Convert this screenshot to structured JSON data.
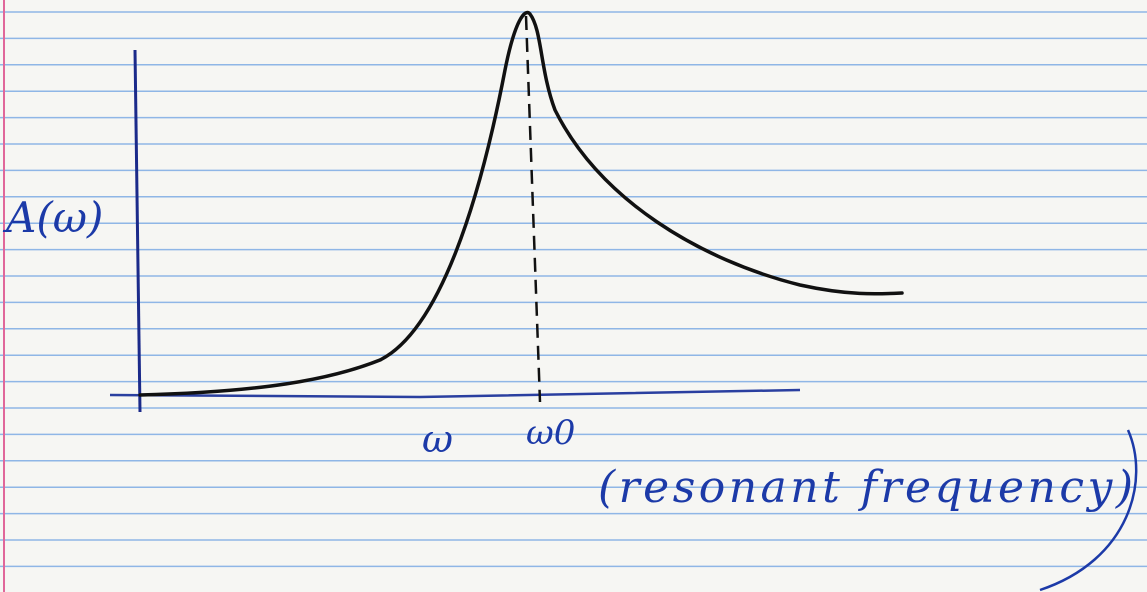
{
  "y_axis_label": "A(ω)",
  "x_labels": [
    "ω",
    "ω0"
  ],
  "annotation": "(resonant frequency)"
}
